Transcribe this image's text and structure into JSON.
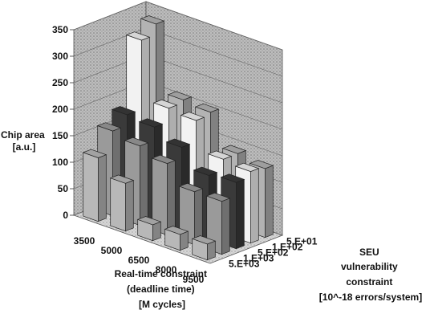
{
  "chart_data": {
    "type": "bar",
    "subtype": "3d-column",
    "title": "",
    "x_categories": [
      "3500",
      "5000",
      "6500",
      "8000",
      "9500"
    ],
    "z_categories": [
      "5.E+03",
      "1.E+03",
      "5.E+02",
      "1.E+02",
      "5.E+01"
    ],
    "xlabel_lines": [
      "Real-time constraint",
      "(deadline time)",
      "[M cycles]"
    ],
    "zlabel_lines": [
      "SEU",
      "vulnerability",
      "constraint",
      "[10^-18 errors/system]"
    ],
    "ylabel_lines": [
      "Chip area",
      "[a.u.]"
    ],
    "ylim": [
      0,
      350
    ],
    "yticks": [
      "0",
      "50",
      "100",
      "150",
      "200",
      "250",
      "300",
      "350"
    ],
    "grid": true,
    "series": [
      {
        "name": "5.E+03",
        "values": [
          120,
          90,
          30,
          30,
          30
        ],
        "color": "#b8b8b8"
      },
      {
        "name": "1.E+03",
        "values": [
          160,
          150,
          135,
          100,
          100
        ],
        "color": "#9a9a9a"
      },
      {
        "name": "5.E+02",
        "values": [
          180,
          175,
          155,
          120,
          125
        ],
        "color": "#3a3a3a"
      },
      {
        "name": "1.E+02",
        "values": [
          310,
          200,
          195,
          140,
          135
        ],
        "color": "#f2f2f2"
      },
      {
        "name": "5.E+01",
        "values": [
          330,
          205,
          200,
          140,
          130
        ],
        "color": "#b3b3b3"
      }
    ]
  }
}
